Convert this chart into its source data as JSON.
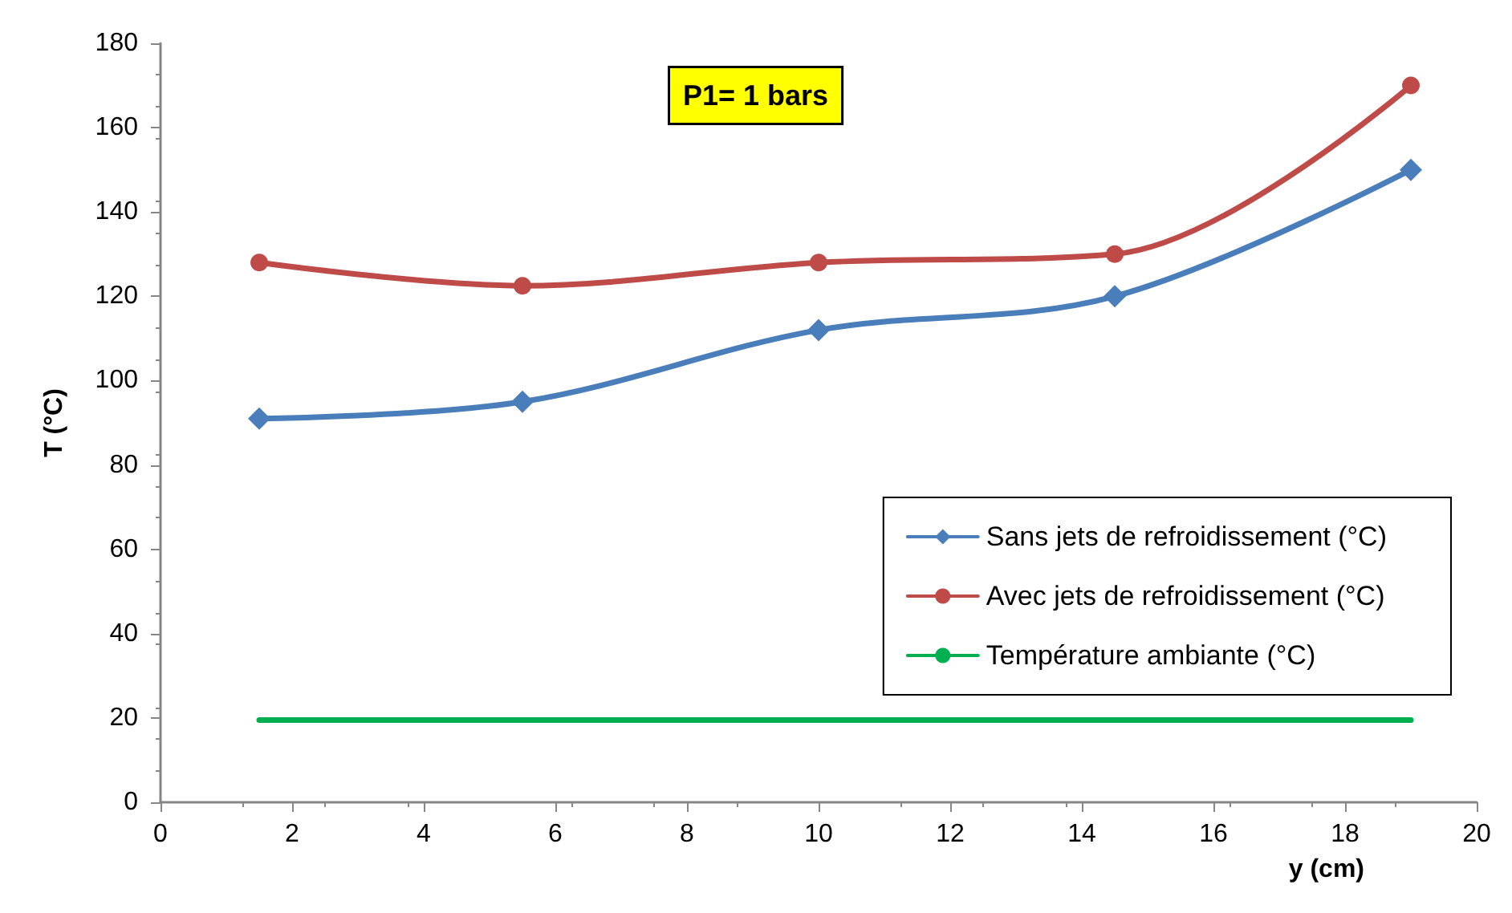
{
  "chart_data": {
    "type": "line",
    "xlabel": "y (cm)",
    "ylabel": "T (°C)",
    "annotations": [
      "P1= 1 bars"
    ],
    "x": [
      1.5,
      5.5,
      10,
      14.5,
      19
    ],
    "series": [
      {
        "name": "Sans jets de refroidissement (°C)",
        "color": "#4a7ebb",
        "marker": "diamond",
        "values": [
          91,
          95,
          112,
          120,
          150
        ]
      },
      {
        "name": "Avec jets de refroidissement (°C)",
        "color": "#be4b48",
        "marker": "circle",
        "values": [
          128,
          122.5,
          128,
          130,
          170
        ]
      },
      {
        "name": "Température ambiante (°C)",
        "color": "#00b050",
        "marker": "none",
        "x": [
          1.5,
          19
        ],
        "values": [
          19.5,
          19.5
        ]
      }
    ],
    "xlim": [
      0,
      20
    ],
    "xticks": [
      0,
      2,
      4,
      6,
      8,
      10,
      12,
      14,
      16,
      18,
      20
    ],
    "ylim": [
      0,
      180
    ],
    "yticks": [
      0,
      20,
      40,
      60,
      80,
      100,
      120,
      140,
      160,
      180
    ],
    "grid": false,
    "legend": "bottom right",
    "line_style": "solid"
  }
}
